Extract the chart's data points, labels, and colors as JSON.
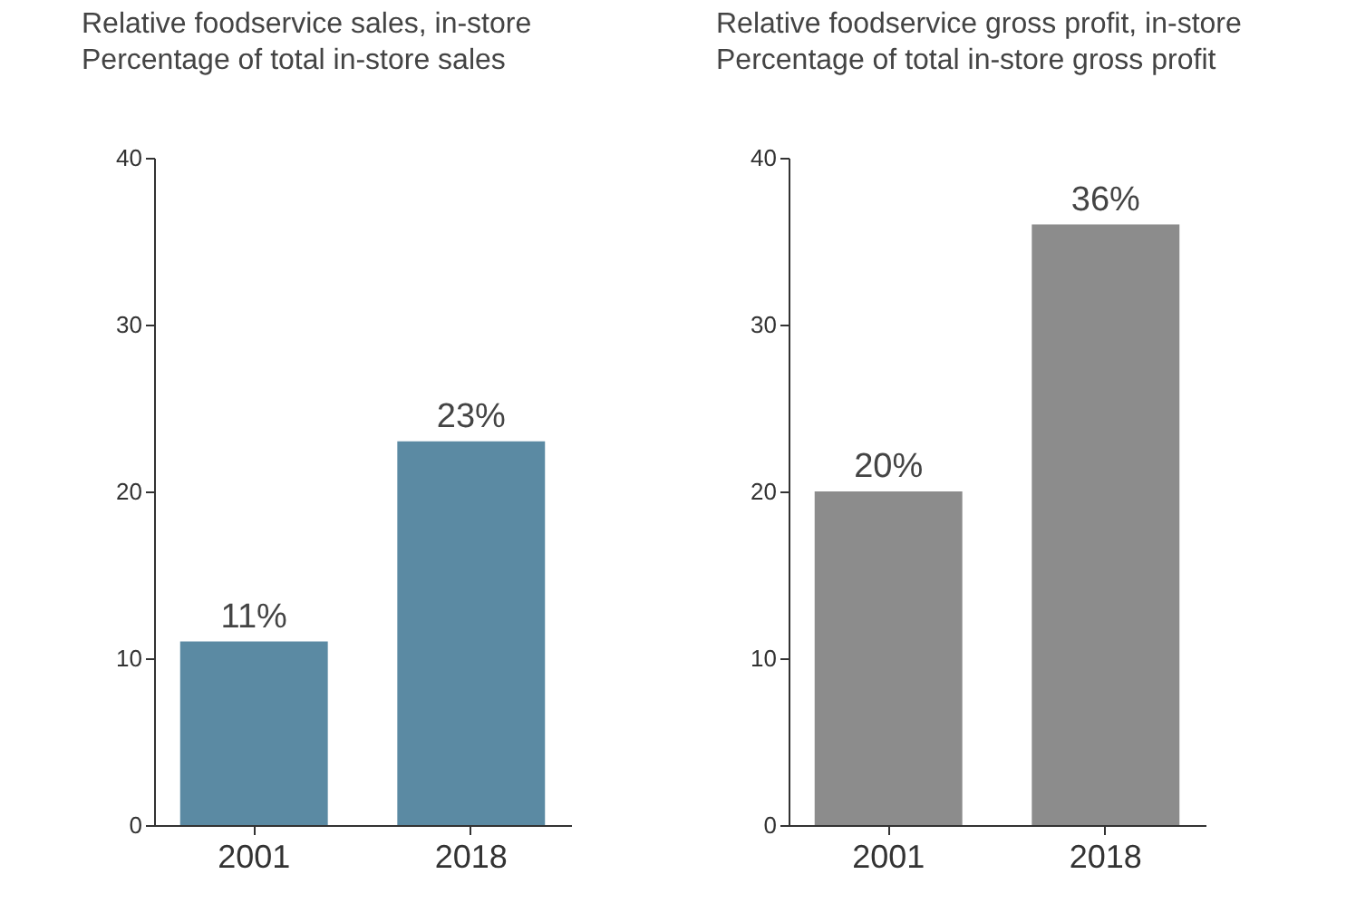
{
  "chart_data": [
    {
      "type": "bar",
      "title": "Relative foodservice sales, in-store",
      "subtitle": "Percentage of total in-store sales",
      "categories": [
        "2001",
        "2018"
      ],
      "values": [
        11,
        23
      ],
      "value_labels": [
        "11%",
        "23%"
      ],
      "color": "#5b8aa3",
      "ylim": [
        0,
        40
      ],
      "yticks": [
        0,
        10,
        20,
        30,
        40
      ],
      "grid": false
    },
    {
      "type": "bar",
      "title": "Relative foodservice gross profit, in-store",
      "subtitle": "Percentage of total in-store gross profit",
      "categories": [
        "2001",
        "2018"
      ],
      "values": [
        20,
        36
      ],
      "value_labels": [
        "20%",
        "36%"
      ],
      "color": "#8c8c8c",
      "ylim": [
        0,
        40
      ],
      "yticks": [
        0,
        10,
        20,
        30,
        40
      ],
      "grid": false
    }
  ]
}
